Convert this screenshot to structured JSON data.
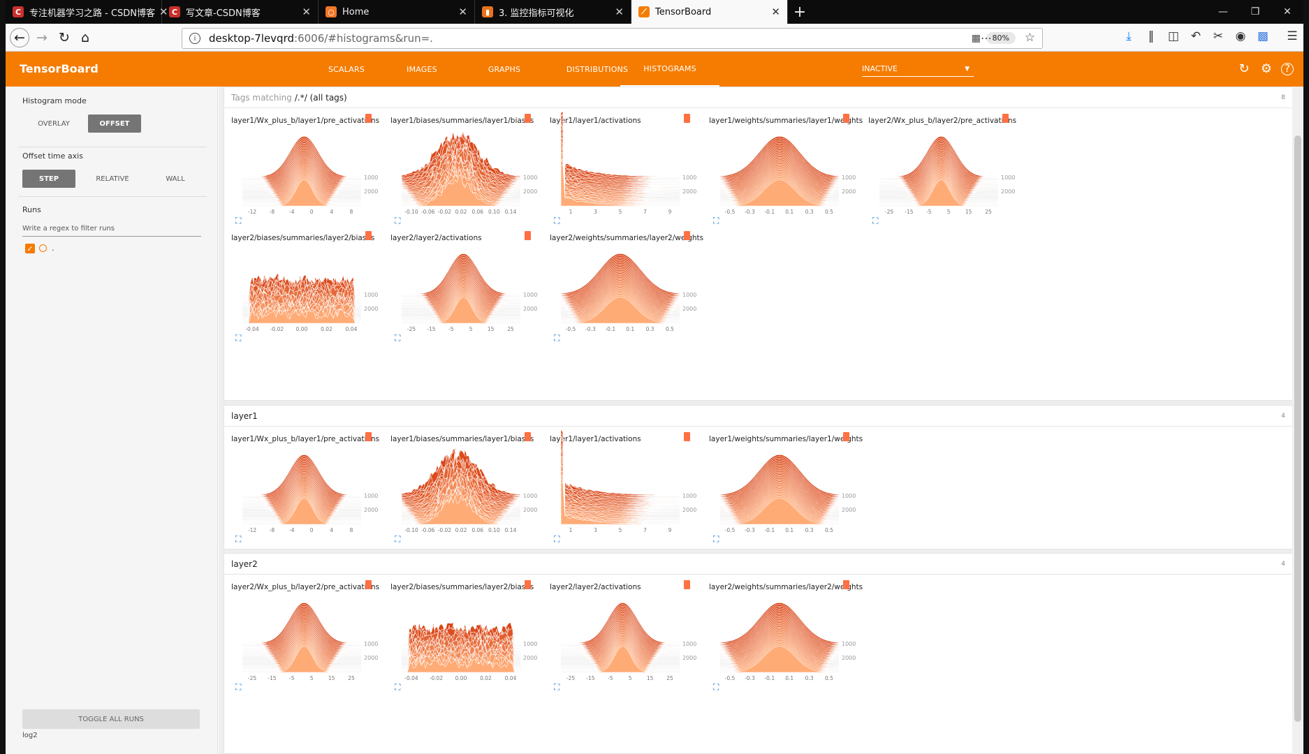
{
  "browser": {
    "tabs": [
      {
        "label": "专注机器学习之路 - CSDN博客",
        "icon": "csdn-icon",
        "color": "#c9302c",
        "glyph": "C"
      },
      {
        "label": "写文章-CSDN博客",
        "icon": "csdn-icon",
        "color": "#c9302c",
        "glyph": "C"
      },
      {
        "label": "Home",
        "icon": "jupyter-icon",
        "color": "#f37726",
        "glyph": "○"
      },
      {
        "label": "3. 监控指标可视化",
        "icon": "book-icon",
        "color": "#e8711c",
        "glyph": "▮"
      },
      {
        "label": "TensorBoard",
        "icon": "tensorboard-icon",
        "color": "#f57c00",
        "glyph": "⟋"
      }
    ],
    "url_host": "desktop-7levqrd",
    "url_rest": ":6006/#histograms&run=.",
    "zoom": "80%"
  },
  "app": {
    "title": "TensorBoard",
    "nav": [
      "SCALARS",
      "IMAGES",
      "GRAPHS",
      "DISTRIBUTIONS",
      "HISTOGRAMS"
    ],
    "run_select": "INACTIVE",
    "accent": "#f57c00"
  },
  "sidebar": {
    "histogram_mode_label": "Histogram mode",
    "histogram_modes": [
      "OVERLAY",
      "OFFSET"
    ],
    "offset_axis_label": "Offset time axis",
    "offset_axis_options": [
      "STEP",
      "RELATIVE",
      "WALL"
    ],
    "runs_label": "Runs",
    "runs_filter_placeholder": "Write a regex to filter runs",
    "run_name": ".",
    "toggle_all": "TOGGLE ALL RUNS",
    "log_name": "log2"
  },
  "sections": [
    {
      "title_muted": "Tags matching",
      "title": "/.*/  (all tags)",
      "count": "8",
      "cards": [
        {
          "title": "layer1/Wx_plus_b/layer1/pre_activations",
          "kind": "sharp",
          "ticks": [
            "-12",
            "-8",
            "-4",
            "0",
            "4",
            "8"
          ]
        },
        {
          "title": "layer1/biases/summaries/layer1/biases",
          "kind": "medium",
          "ticks": [
            "-0.10",
            "-0.06",
            "-0.02",
            "0.02",
            "0.06",
            "0.10",
            "0.14"
          ]
        },
        {
          "title": "layer1/layer1/activations",
          "kind": "decay",
          "ticks": [
            "1",
            "3",
            "5",
            "7",
            "9"
          ]
        },
        {
          "title": "layer1/weights/summaries/layer1/weights",
          "kind": "wide",
          "ticks": [
            "-0.5",
            "-0.3",
            "-0.1",
            "0.1",
            "0.3",
            "0.5"
          ]
        },
        {
          "title": "layer2/Wx_plus_b/layer2/pre_activations",
          "kind": "sharp",
          "ticks": [
            "-25",
            "-15",
            "-5",
            "5",
            "15",
            "25"
          ]
        },
        {
          "title": "layer2/biases/summaries/layer2/biases",
          "kind": "spiky",
          "ticks": [
            "-0.04",
            "-0.02",
            "0.00",
            "0.02",
            "0.04"
          ]
        },
        {
          "title": "layer2/layer2/activations",
          "kind": "sharp",
          "ticks": [
            "-25",
            "-15",
            "-5",
            "5",
            "15",
            "25"
          ]
        },
        {
          "title": "layer2/weights/summaries/layer2/weights",
          "kind": "wide",
          "ticks": [
            "-0.5",
            "-0.3",
            "-0.1",
            "0.1",
            "0.3",
            "0.5"
          ]
        }
      ]
    },
    {
      "title_muted": "",
      "title": "layer1",
      "count": "4",
      "cards": [
        {
          "title": "layer1/Wx_plus_b/layer1/pre_activations",
          "kind": "sharp",
          "ticks": [
            "-12",
            "-8",
            "-4",
            "0",
            "4",
            "8"
          ]
        },
        {
          "title": "layer1/biases/summaries/layer1/biases",
          "kind": "medium",
          "ticks": [
            "-0.10",
            "-0.06",
            "-0.02",
            "0.02",
            "0.06",
            "0.10",
            "0.14"
          ]
        },
        {
          "title": "layer1/layer1/activations",
          "kind": "decay",
          "ticks": [
            "1",
            "3",
            "5",
            "7",
            "9"
          ]
        },
        {
          "title": "layer1/weights/summaries/layer1/weights",
          "kind": "wide",
          "ticks": [
            "-0.5",
            "-0.3",
            "-0.1",
            "0.1",
            "0.3",
            "0.5"
          ]
        }
      ]
    },
    {
      "title_muted": "",
      "title": "layer2",
      "count": "4",
      "cards": [
        {
          "title": "layer2/Wx_plus_b/layer2/pre_activations",
          "kind": "sharp",
          "ticks": [
            "-25",
            "-15",
            "-5",
            "5",
            "15",
            "25"
          ]
        },
        {
          "title": "layer2/biases/summaries/layer2/biases",
          "kind": "spiky",
          "ticks": [
            "-0.04",
            "-0.02",
            "0.00",
            "0.02",
            "0.04"
          ]
        },
        {
          "title": "layer2/layer2/activations",
          "kind": "sharp",
          "ticks": [
            "-25",
            "-15",
            "-5",
            "5",
            "15",
            "25"
          ]
        },
        {
          "title": "layer2/weights/summaries/layer2/weights",
          "kind": "wide",
          "ticks": [
            "-0.5",
            "-0.3",
            "-0.1",
            "0.1",
            "0.3",
            "0.5"
          ]
        }
      ]
    }
  ],
  "step_axis_ticks": [
    "1000",
    "2000"
  ]
}
